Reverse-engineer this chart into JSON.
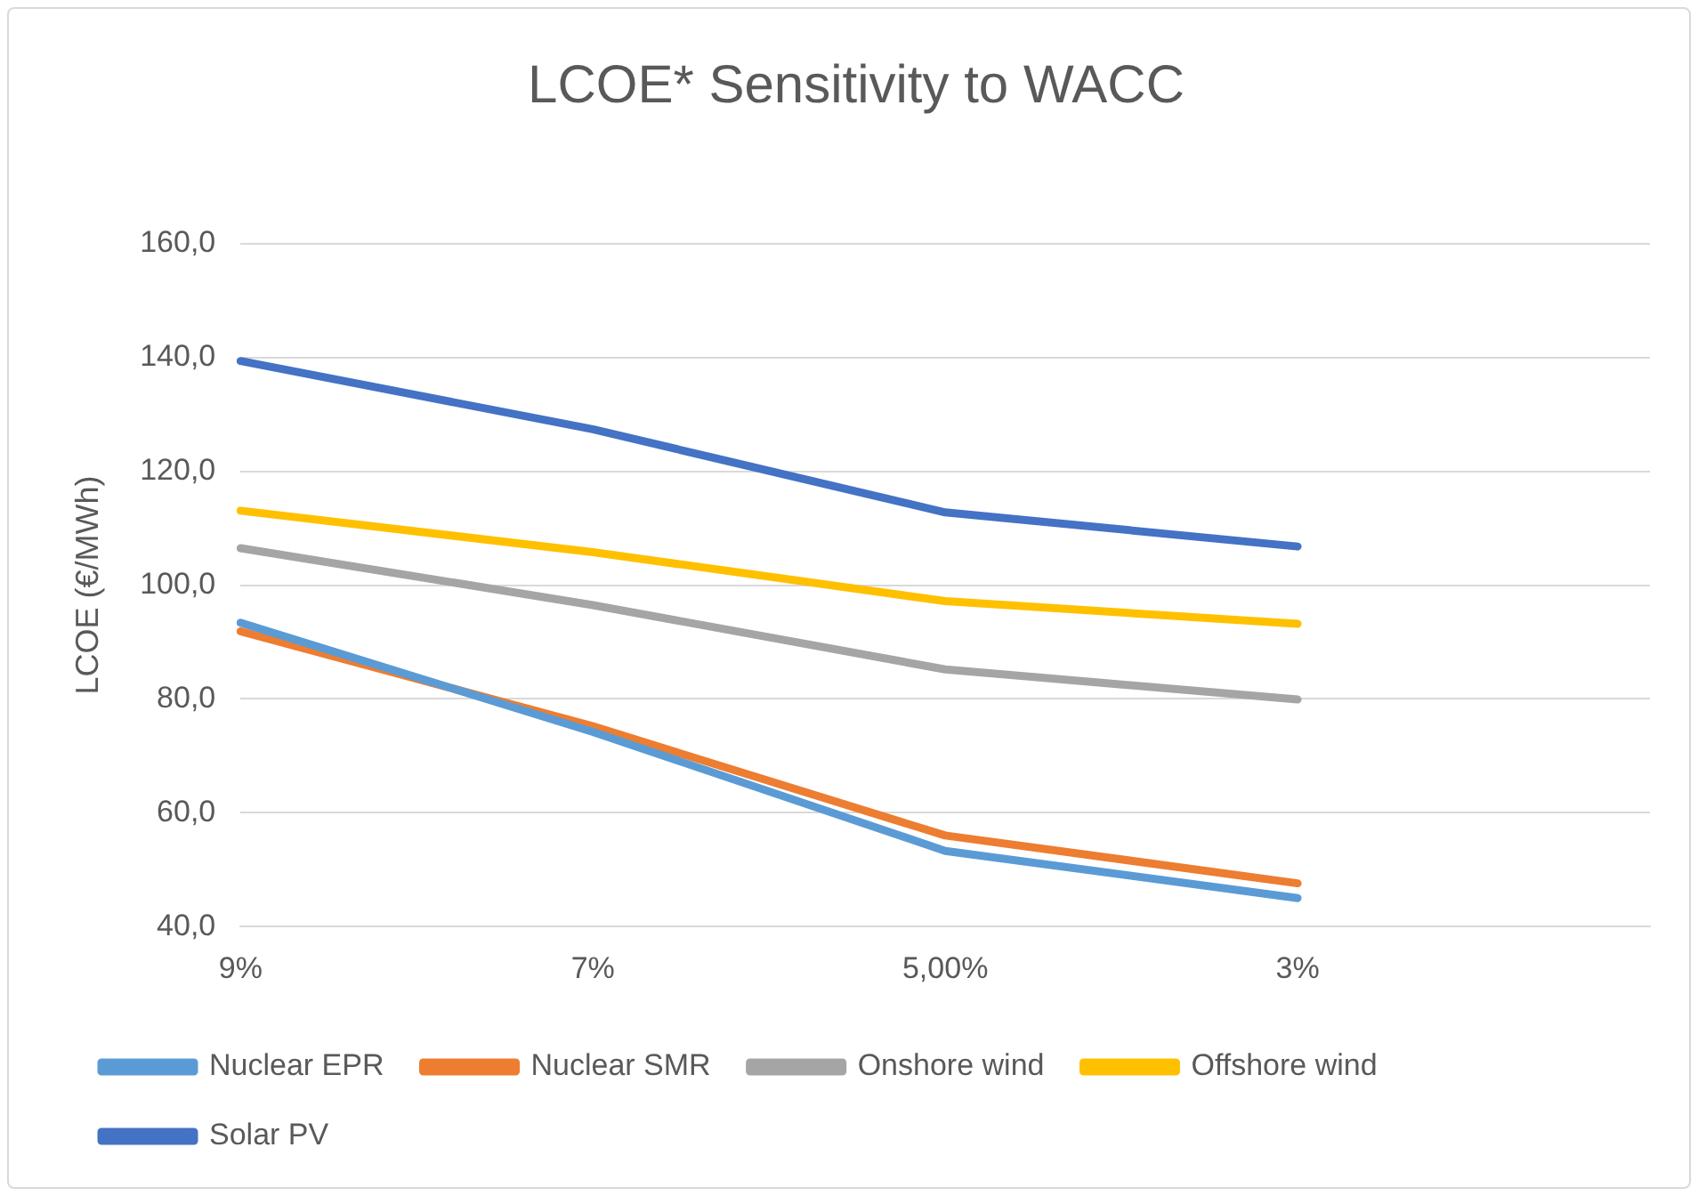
{
  "chart_data": {
    "type": "line",
    "title": "LCOE* Sensitivity to WACC",
    "ylabel": "LCOE (€/MWh)",
    "categories": [
      "9%",
      "7%",
      "5,00%",
      "3%",
      null
    ],
    "series": [
      {
        "name": "Nuclear EPR",
        "color": "#5b9bd5",
        "values": [
          93.4,
          74.2,
          53.3,
          45.0,
          null
        ]
      },
      {
        "name": "Nuclear SMR",
        "color": "#ed7d31",
        "values": [
          91.9,
          75.2,
          56.0,
          47.6,
          null
        ]
      },
      {
        "name": "Onshore wind",
        "color": "#a5a5a5",
        "values": [
          106.5,
          96.5,
          85.2,
          79.9,
          null
        ]
      },
      {
        "name": "Offshore wind",
        "color": "#ffc000",
        "values": [
          113.1,
          105.8,
          97.2,
          93.2,
          null
        ]
      },
      {
        "name": "Solar PV",
        "color": "#4472c4",
        "values": [
          139.4,
          127.4,
          112.8,
          106.8,
          null
        ]
      }
    ],
    "ylim": [
      40,
      160
    ],
    "yticks": [
      {
        "value": 40,
        "label": "40,0"
      },
      {
        "value": 60,
        "label": "60,0"
      },
      {
        "value": 80,
        "label": "80,0"
      },
      {
        "value": 100,
        "label": "100,0"
      },
      {
        "value": 120,
        "label": "120,0"
      },
      {
        "value": 140,
        "label": "140,0"
      },
      {
        "value": 160,
        "label": "160,0"
      }
    ],
    "grid": "y",
    "legend": "bottom",
    "marker": "none",
    "line_style": "solid"
  }
}
